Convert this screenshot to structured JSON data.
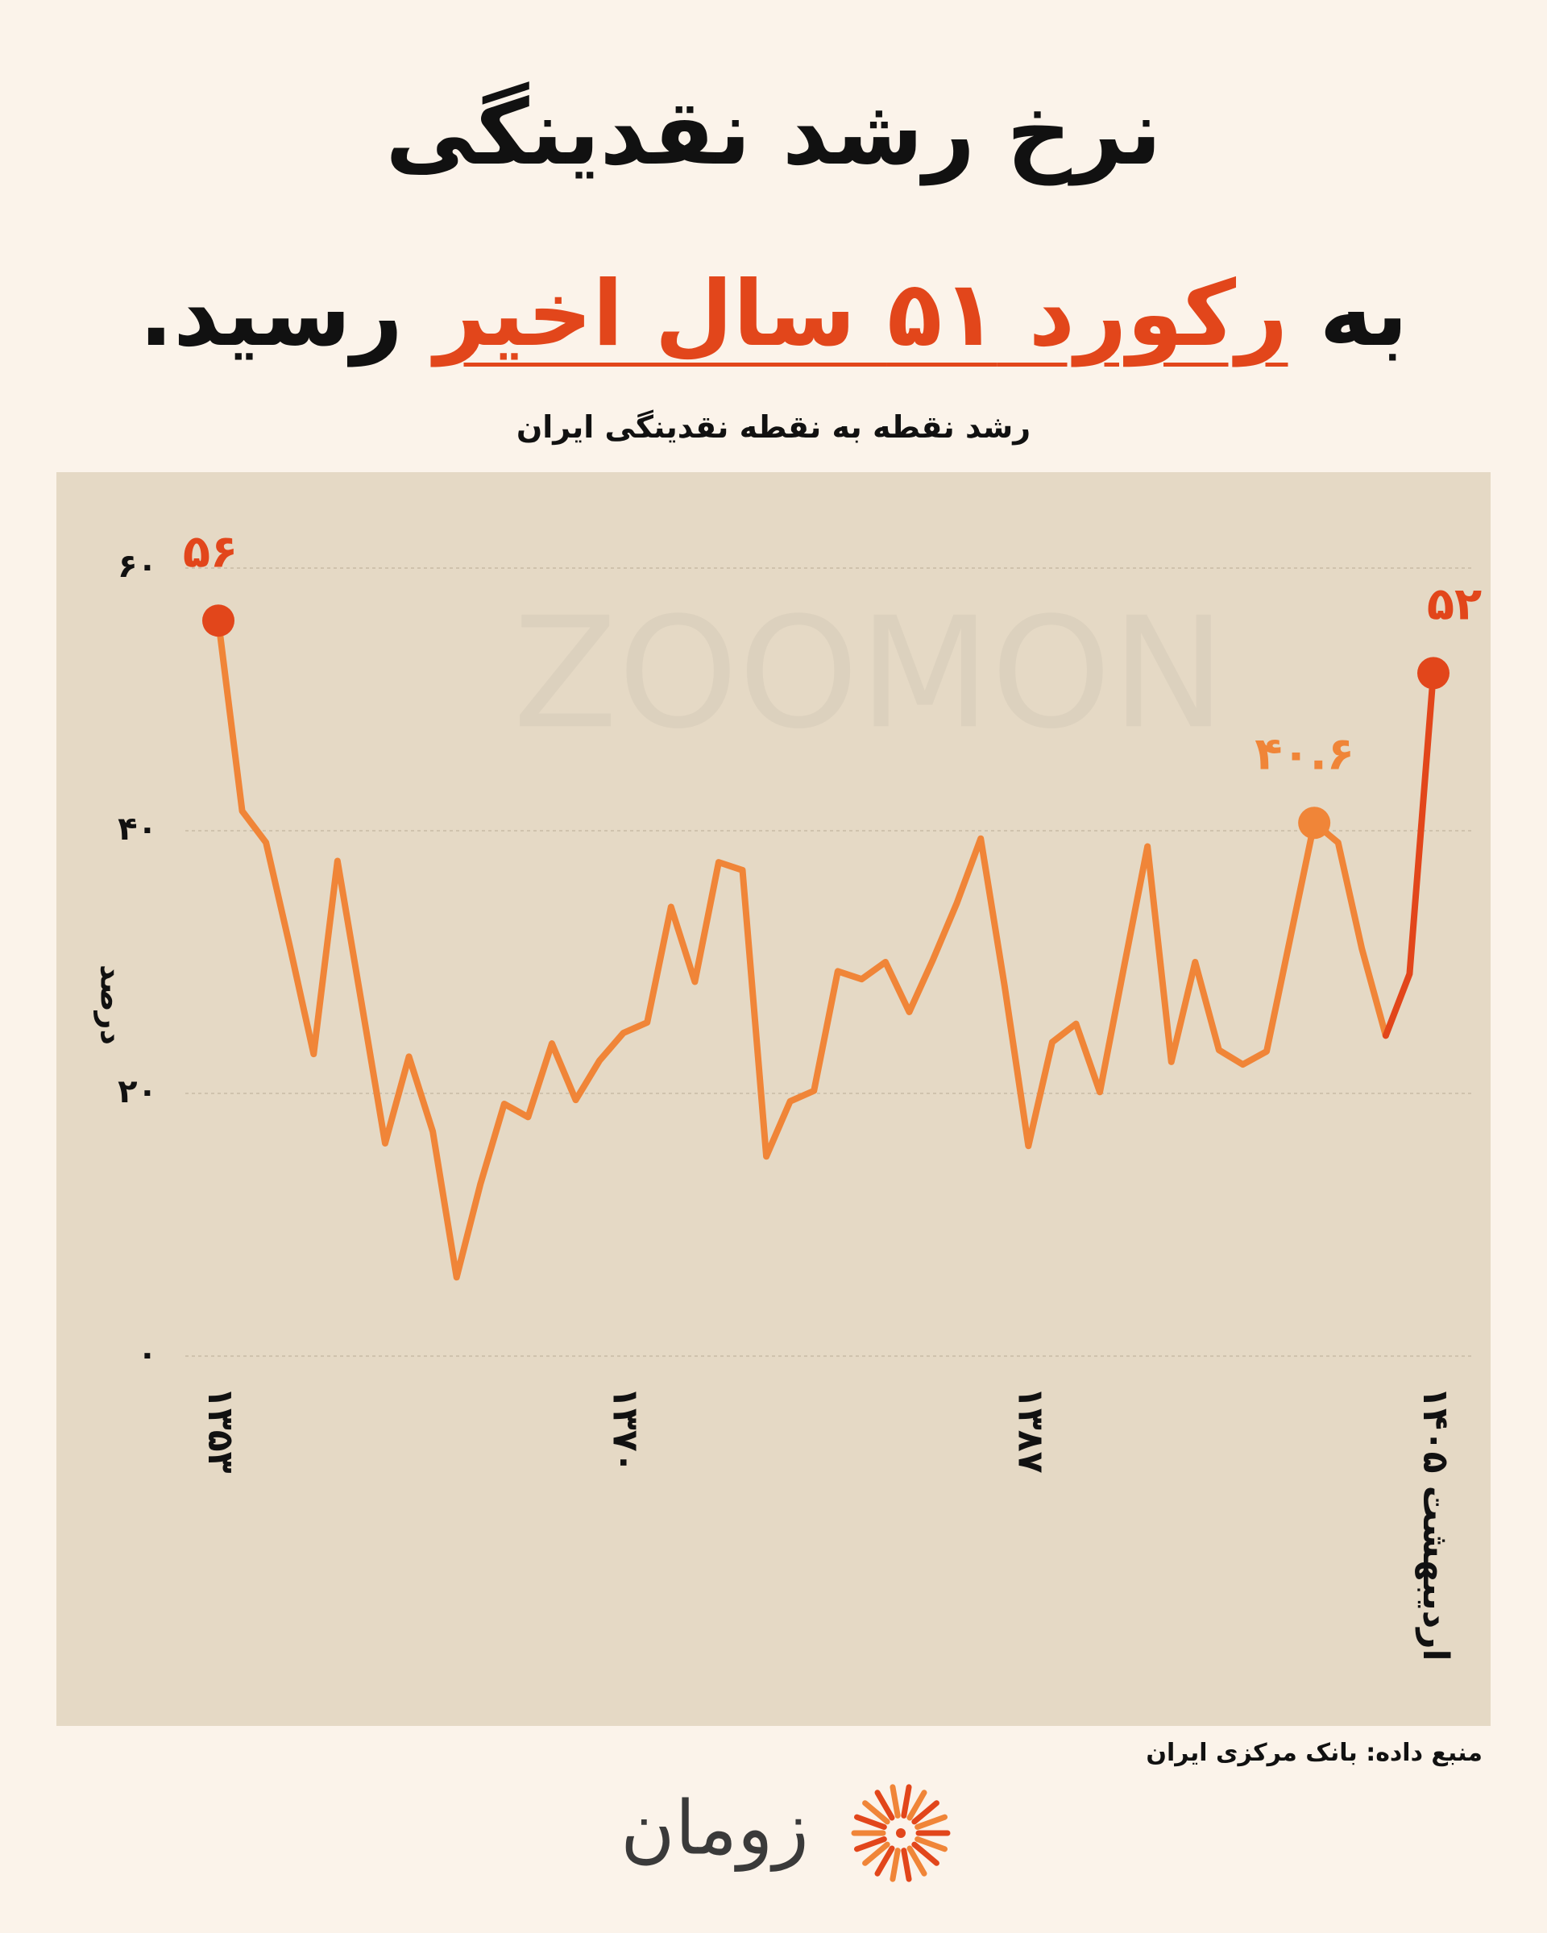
{
  "chart_data": {
    "type": "line",
    "title": "نرخ رشد نقدینگی",
    "headline": [
      "به",
      "رکورد ۵۱ سال اخیر",
      "رسید."
    ],
    "subtitle": "رشد نقطه به نقطه نقدینگی ایران",
    "y_label": "درصد",
    "source": "منبع داده: بانک مرکزی ایران",
    "brand": "زومان",
    "watermark": "ZOOMON",
    "categories": [
      "۱۳۵۳",
      null,
      null,
      null,
      null,
      null,
      null,
      null,
      null,
      null,
      null,
      null,
      null,
      null,
      null,
      null,
      null,
      "۱۳۷۰",
      null,
      null,
      null,
      null,
      null,
      null,
      null,
      null,
      null,
      null,
      null,
      null,
      null,
      null,
      null,
      null,
      "۱۳۸۷",
      null,
      null,
      null,
      null,
      null,
      null,
      null,
      null,
      null,
      null,
      null,
      null,
      null,
      null,
      null,
      null,
      "اردیبهشت ۱۴۰۵"
    ],
    "series": [
      {
        "color": "#f08538",
        "accent_color": "#e2461b",
        "values": [
          56,
          41.5,
          39.1,
          31.2,
          23.0,
          37.7,
          27.0,
          16.2,
          22.8,
          17.1,
          6.0,
          13.1,
          19.2,
          18.2,
          23.8,
          19.5,
          22.5,
          24.6,
          25.4,
          34.2,
          28.5,
          37.6,
          37.0,
          15.2,
          19.4,
          20.2,
          29.3,
          28.7,
          30.0,
          26.2,
          30.2,
          34.5,
          39.4,
          28.2,
          16.0,
          23.9,
          25.3,
          20.1,
          29.5,
          38.8,
          22.4,
          30.0,
          23.3,
          22.2,
          23.2,
          31.9,
          40.6,
          39.1,
          31.0,
          24.4,
          29.1,
          52
        ],
        "value_labels": [
          "۵۶",
          null,
          null,
          null,
          null,
          null,
          null,
          null,
          null,
          null,
          null,
          null,
          null,
          null,
          null,
          null,
          null,
          null,
          null,
          null,
          null,
          null,
          null,
          null,
          null,
          null,
          null,
          null,
          null,
          null,
          null,
          null,
          null,
          null,
          null,
          null,
          null,
          null,
          null,
          null,
          null,
          null,
          null,
          null,
          null,
          null,
          "۴۰.۶",
          null,
          null,
          null,
          null,
          "۵۲"
        ]
      }
    ],
    "ylim": [
      0,
      60
    ],
    "yticks": [
      {
        "value": 0,
        "label": "۰"
      },
      {
        "value": 20,
        "label": "۲۰"
      },
      {
        "value": 40,
        "label": "۴۰"
      },
      {
        "value": 60,
        "label": "۶۰"
      }
    ],
    "grid": true
  }
}
